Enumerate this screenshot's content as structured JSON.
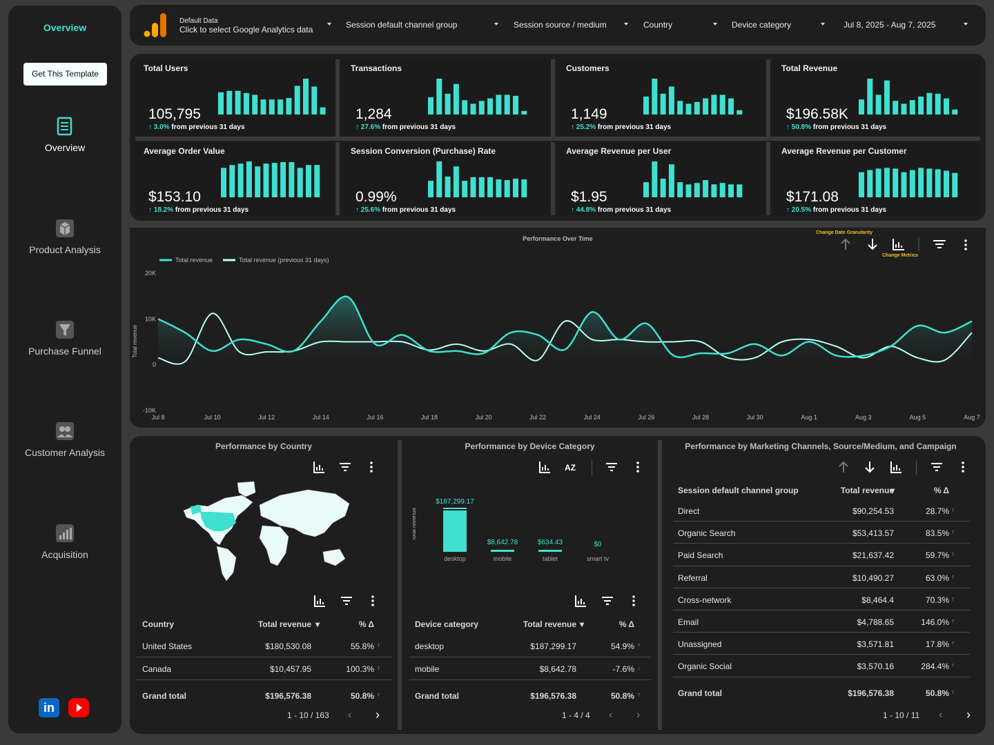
{
  "sidebar": {
    "title": "Overview",
    "template_button": "Get This Template",
    "nav": [
      {
        "label": "Overview",
        "icon": "document-icon"
      },
      {
        "label": "Product Analysis",
        "icon": "box-icon"
      },
      {
        "label": "Purchase Funnel",
        "icon": "funnel-icon"
      },
      {
        "label": "Customer Analysis",
        "icon": "users-icon"
      },
      {
        "label": "Acquisition",
        "icon": "bar-chart-icon"
      }
    ],
    "linkedin": "in"
  },
  "topbar": {
    "data_title": "Default Data",
    "data_sub": "Click to select Google Analytics data",
    "filters": [
      "Session default channel group",
      "Session source / medium",
      "Country",
      "Device category"
    ],
    "date_range": "Jul 8, 2025 - Aug 7, 2025"
  },
  "kpis": [
    {
      "label": "Total Users",
      "value": "105,795",
      "delta": "3.0%",
      "suffix": "from previous 31 days",
      "bars": [
        0.62,
        0.66,
        0.66,
        0.6,
        0.55,
        0.42,
        0.42,
        0.42,
        0.46,
        0.8,
        1.0,
        0.78,
        0.2
      ]
    },
    {
      "label": "Transactions",
      "value": "1,284",
      "delta": "27.6%",
      "suffix": "from previous 31 days",
      "bars": [
        0.48,
        1.0,
        0.58,
        0.85,
        0.4,
        0.3,
        0.38,
        0.45,
        0.55,
        0.55,
        0.52,
        0.1
      ]
    },
    {
      "label": "Customers",
      "value": "1,149",
      "delta": "25.2%",
      "suffix": "from previous 31 days",
      "bars": [
        0.5,
        1.0,
        0.58,
        0.78,
        0.38,
        0.3,
        0.35,
        0.45,
        0.55,
        0.55,
        0.45,
        0.12
      ]
    },
    {
      "label": "Total Revenue",
      "value": "$196.58K",
      "delta": "50.8%",
      "suffix": "from previous 31 days",
      "bars": [
        0.42,
        1.0,
        0.55,
        0.95,
        0.38,
        0.3,
        0.4,
        0.5,
        0.6,
        0.58,
        0.45,
        0.14
      ]
    },
    {
      "label": "Average Order Value",
      "value": "$153.10",
      "delta": "18.2%",
      "suffix": "from previous 31 days",
      "bars": [
        0.82,
        0.9,
        0.94,
        1.0,
        0.86,
        0.94,
        0.96,
        0.98,
        0.98,
        0.82,
        0.9,
        0.9
      ]
    },
    {
      "label": "Session Conversion (Purchase) Rate",
      "value": "0.99%",
      "delta": "25.6%",
      "suffix": "from previous 31 days",
      "bars": [
        0.46,
        1.0,
        0.58,
        0.86,
        0.46,
        0.56,
        0.56,
        0.56,
        0.5,
        0.48,
        0.52,
        0.5
      ]
    },
    {
      "label": "Average Revenue per User",
      "value": "$1.95",
      "delta": "44.8%",
      "suffix": "from previous 31 days",
      "bars": [
        0.42,
        1.0,
        0.52,
        0.92,
        0.42,
        0.36,
        0.4,
        0.48,
        0.36,
        0.4,
        0.36,
        0.36
      ]
    },
    {
      "label": "Average Revenue per Customer",
      "value": "$171.08",
      "delta": "20.5%",
      "suffix": "from previous 31 days",
      "bars": [
        0.7,
        0.76,
        0.8,
        0.82,
        0.8,
        0.7,
        0.76,
        0.82,
        0.8,
        0.78,
        0.74,
        0.68
      ]
    }
  ],
  "chart_data": {
    "type": "line",
    "title": "Performance Over Time",
    "ylabel": "Total revenue",
    "ylim": [
      -10000,
      20000
    ],
    "yticks": [
      "20K",
      "10K",
      "0",
      "-10K"
    ],
    "x": [
      "Jul 8",
      "Jul 9",
      "Jul 10",
      "Jul 11",
      "Jul 12",
      "Jul 13",
      "Jul 14",
      "Jul 15",
      "Jul 16",
      "Jul 17",
      "Jul 18",
      "Jul 19",
      "Jul 20",
      "Jul 21",
      "Jul 22",
      "Jul 23",
      "Jul 24",
      "Jul 25",
      "Jul 26",
      "Jul 27",
      "Jul 28",
      "Jul 29",
      "Jul 30",
      "Jul 31",
      "Aug 1",
      "Aug 2",
      "Aug 3",
      "Aug 4",
      "Aug 5",
      "Aug 6",
      "Aug 7"
    ],
    "xtick_labels": [
      "Jul 8",
      "Jul 10",
      "Jul 12",
      "Jul 14",
      "Jul 16",
      "Jul 18",
      "Jul 20",
      "Jul 22",
      "Jul 24",
      "Jul 26",
      "Jul 28",
      "Jul 30",
      "Aug 1",
      "Aug 3",
      "Aug 5",
      "Aug 7"
    ],
    "series": [
      {
        "name": "Total revenue",
        "values": [
          10000,
          7000,
          3000,
          5500,
          4500,
          3000,
          9500,
          14800,
          4500,
          6500,
          3000,
          3000,
          2500,
          7000,
          6500,
          3300,
          11500,
          5500,
          9000,
          2000,
          2500,
          2500,
          4500,
          2000,
          5000,
          2000,
          2000,
          4000,
          8500,
          7000,
          9500
        ]
      },
      {
        "name": "Total revenue (previous 31 days)",
        "values": [
          1500,
          700,
          11200,
          2800,
          2800,
          3000,
          5000,
          5000,
          5000,
          5000,
          3200,
          4500,
          3000,
          4500,
          1000,
          9500,
          5500,
          5500,
          5000,
          5000,
          5000,
          1500,
          1500,
          5000,
          5500,
          4000,
          1500,
          4000,
          1500,
          1000,
          7000
        ]
      }
    ],
    "toolbar": {
      "granularity_label": "Change Date Granularity",
      "metrics_label": "Change Metrics"
    }
  },
  "country": {
    "title": "Performance by Country",
    "headers": [
      "Country",
      "Total revenue",
      "% Δ"
    ],
    "rows": [
      {
        "name": "United States",
        "rev": "$180,530.08",
        "delta": "55.8%",
        "dir": "up"
      },
      {
        "name": "Canada",
        "rev": "$10,457.95",
        "delta": "100.3%",
        "dir": "up"
      }
    ],
    "total": {
      "name": "Grand total",
      "rev": "$196,576.38",
      "delta": "50.8%"
    },
    "pager": "1 - 10 / 163"
  },
  "device": {
    "title": "Performance by Device Category",
    "chart_data": {
      "type": "bar",
      "categories": [
        "desktop",
        "mobile",
        "tablet",
        "smart tv"
      ],
      "values": [
        187299.17,
        8642.78,
        634.43,
        0
      ],
      "labels": [
        "$187,299.17",
        "$8,642.78",
        "$634.43",
        "$0"
      ],
      "ylabel": "Total revenue"
    },
    "headers": [
      "Device category",
      "Total revenue",
      "% Δ"
    ],
    "rows": [
      {
        "name": "desktop",
        "rev": "$187,299.17",
        "delta": "54.9%",
        "dir": "up"
      },
      {
        "name": "mobile",
        "rev": "$8,642.78",
        "delta": "-7.6%",
        "dir": "down"
      }
    ],
    "total": {
      "name": "Grand total",
      "rev": "$196,576.38",
      "delta": "50.8%"
    },
    "pager": "1 - 4 / 4"
  },
  "channels": {
    "title": "Performance by Marketing Channels, Source/Medium, and Campaign",
    "headers": [
      "Session default channel group",
      "Total revenue",
      "% Δ"
    ],
    "rows": [
      {
        "name": "Direct",
        "rev": "$90,254.53",
        "delta": "28.7%"
      },
      {
        "name": "Organic Search",
        "rev": "$53,413.57",
        "delta": "83.5%"
      },
      {
        "name": "Paid Search",
        "rev": "$21,637.42",
        "delta": "59.7%"
      },
      {
        "name": "Referral",
        "rev": "$10,490.27",
        "delta": "63.0%"
      },
      {
        "name": "Cross-network",
        "rev": "$8,464.4",
        "delta": "70.3%"
      },
      {
        "name": "Email",
        "rev": "$4,788.65",
        "delta": "146.0%"
      },
      {
        "name": "Unassigned",
        "rev": "$3,571.81",
        "delta": "17.8%"
      },
      {
        "name": "Organic Social",
        "rev": "$3,570.16",
        "delta": "284.4%"
      }
    ],
    "total": {
      "name": "Grand total",
      "rev": "$196,576.38",
      "delta": "50.8%"
    },
    "pager": "1 - 10 / 11"
  },
  "colors": {
    "accent": "#3fe0d0",
    "bg": "#1e1e1e",
    "page": "#3a3a3a",
    "down": "#ff4d4d"
  }
}
